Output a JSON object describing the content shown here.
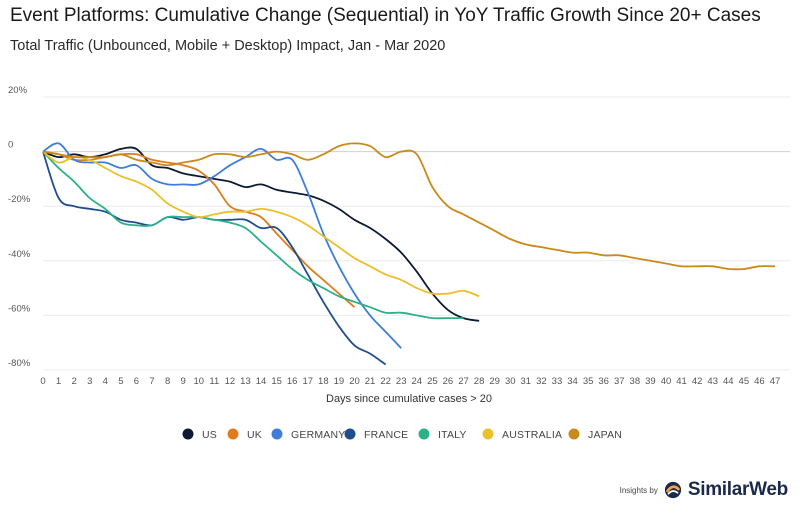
{
  "title": "Event Platforms: Cumulative Change (Sequential) in YoY Traffic Growth Since 20+ Cases",
  "subtitle": "Total Traffic (Unbounced, Mobile + Desktop) Impact, Jan - Mar 2020",
  "credit": {
    "prefix": "Insights by",
    "brand": "SimilarWeb",
    "brand_icon": "similarweb-logo-icon"
  },
  "chart_data": {
    "type": "line",
    "title": "Event Platforms: Cumulative Change (Sequential) in YoY Traffic Growth Since 20+ Cases",
    "subtitle": "Total Traffic (Unbounced, Mobile + Desktop) Impact, Jan - Mar 2020",
    "xlabel": "Days since cumulative cases > 20",
    "ylabel": "",
    "xlim": [
      0,
      47
    ],
    "ylim": [
      -80,
      20
    ],
    "x_ticks": [
      0,
      1,
      2,
      3,
      4,
      5,
      6,
      7,
      8,
      9,
      10,
      11,
      12,
      13,
      14,
      15,
      16,
      17,
      18,
      19,
      20,
      21,
      22,
      23,
      24,
      25,
      26,
      27,
      28,
      29,
      30,
      31,
      32,
      33,
      34,
      35,
      36,
      37,
      38,
      39,
      40,
      41,
      42,
      43,
      44,
      45,
      46,
      47
    ],
    "y_ticks": [
      20,
      0,
      -20,
      -40,
      -60,
      -80
    ],
    "y_tick_labels": [
      "20%",
      "0",
      "-20%",
      "-40%",
      "-60%",
      "-80%"
    ],
    "grid": "horizontal",
    "legend_position": "bottom",
    "series": [
      {
        "name": "US",
        "color": "#0e1a33",
        "x": [
          0,
          1,
          2,
          3,
          4,
          5,
          6,
          7,
          8,
          9,
          10,
          11,
          12,
          13,
          14,
          15,
          16,
          17,
          18,
          19,
          20,
          21,
          22,
          23,
          24,
          25,
          26,
          27,
          28
        ],
        "y": [
          0,
          -2,
          -1,
          -2,
          -1,
          1,
          1,
          -5,
          -6,
          -8,
          -9,
          -10,
          -11,
          -13,
          -12,
          -14,
          -15,
          -16,
          -18,
          -21,
          -25,
          -28,
          -32,
          -37,
          -44,
          -52,
          -58,
          -61,
          -62
        ]
      },
      {
        "name": "UK",
        "color": "#e07c1e",
        "x": [
          0,
          1,
          2,
          3,
          4,
          5,
          6,
          7,
          8,
          9,
          10,
          11,
          12,
          13,
          14,
          15,
          16,
          17,
          18,
          19,
          20
        ],
        "y": [
          0,
          -1,
          -3,
          -3,
          -2,
          -1,
          -1,
          -3,
          -4,
          -5,
          -7,
          -12,
          -20,
          -22,
          -24,
          -30,
          -36,
          -42,
          -47,
          -52,
          -57
        ]
      },
      {
        "name": "GERMANY",
        "color": "#3f7dd9",
        "x": [
          0,
          1,
          2,
          3,
          4,
          5,
          6,
          7,
          8,
          9,
          10,
          11,
          12,
          13,
          14,
          15,
          16,
          17,
          18,
          19,
          20,
          21,
          22,
          23
        ],
        "y": [
          0,
          3,
          -3,
          -4,
          -4,
          -6,
          -5,
          -10,
          -12,
          -12,
          -12,
          -9,
          -5,
          -2,
          1,
          -3,
          -3,
          -15,
          -30,
          -42,
          -52,
          -60,
          -66,
          -72
        ]
      },
      {
        "name": "FRANCE",
        "color": "#1f4e8c",
        "x": [
          0,
          1,
          2,
          3,
          4,
          5,
          6,
          7,
          8,
          9,
          10,
          11,
          12,
          13,
          14,
          15,
          16,
          17,
          18,
          19,
          20,
          21,
          22
        ],
        "y": [
          0,
          -17,
          -20,
          -21,
          -22,
          -25,
          -26,
          -27,
          -24,
          -25,
          -24,
          -25,
          -25,
          -25,
          -28,
          -28,
          -35,
          -45,
          -55,
          -64,
          -71,
          -74,
          -78
        ]
      },
      {
        "name": "ITALY",
        "color": "#2bb08a",
        "x": [
          0,
          1,
          2,
          3,
          4,
          5,
          6,
          7,
          8,
          9,
          10,
          11,
          12,
          13,
          14,
          15,
          16,
          17,
          18,
          19,
          20,
          21,
          22,
          23,
          24,
          25,
          26,
          27
        ],
        "y": [
          0,
          -6,
          -11,
          -17,
          -21,
          -26,
          -27,
          -27,
          -24,
          -24,
          -24,
          -25,
          -26,
          -28,
          -33,
          -38,
          -43,
          -47,
          -50,
          -53,
          -55,
          -57,
          -59,
          -59,
          -60,
          -61,
          -61,
          -61
        ]
      },
      {
        "name": "AUSTRALIA",
        "color": "#ecc02a",
        "x": [
          0,
          1,
          2,
          3,
          4,
          5,
          6,
          7,
          8,
          9,
          10,
          11,
          12,
          13,
          14,
          15,
          16,
          17,
          18,
          19,
          20,
          21,
          22,
          23,
          24,
          25,
          26,
          27,
          28
        ],
        "y": [
          0,
          -4,
          -2,
          -3,
          -6,
          -9,
          -11,
          -14,
          -19,
          -22,
          -24,
          -23,
          -22,
          -22,
          -21,
          -22,
          -24,
          -27,
          -31,
          -35,
          -39,
          -42,
          -45,
          -47,
          -50,
          -52,
          -52,
          -51,
          -53
        ]
      },
      {
        "name": "JAPAN",
        "color": "#c98a1a",
        "x": [
          0,
          1,
          2,
          3,
          4,
          5,
          6,
          7,
          8,
          9,
          10,
          11,
          12,
          13,
          14,
          15,
          16,
          17,
          18,
          19,
          20,
          21,
          22,
          23,
          24,
          25,
          26,
          27,
          28,
          29,
          30,
          31,
          32,
          33,
          34,
          35,
          36,
          37,
          38,
          39,
          40,
          41,
          42,
          43,
          44,
          45,
          46,
          47
        ],
        "y": [
          0,
          -1,
          -2,
          -2,
          -2,
          -1,
          -3,
          -4,
          -5,
          -4,
          -3,
          -1,
          -1,
          -2,
          -1,
          0,
          -1,
          -3,
          -1,
          2,
          3,
          2,
          -2,
          0,
          -1,
          -13,
          -20,
          -23,
          -26,
          -29,
          -32,
          -34,
          -35,
          -36,
          -37,
          -37,
          -38,
          -38,
          -39,
          -40,
          -41,
          -42,
          -42,
          -42,
          -43,
          -43,
          -42,
          -42
        ]
      }
    ]
  }
}
